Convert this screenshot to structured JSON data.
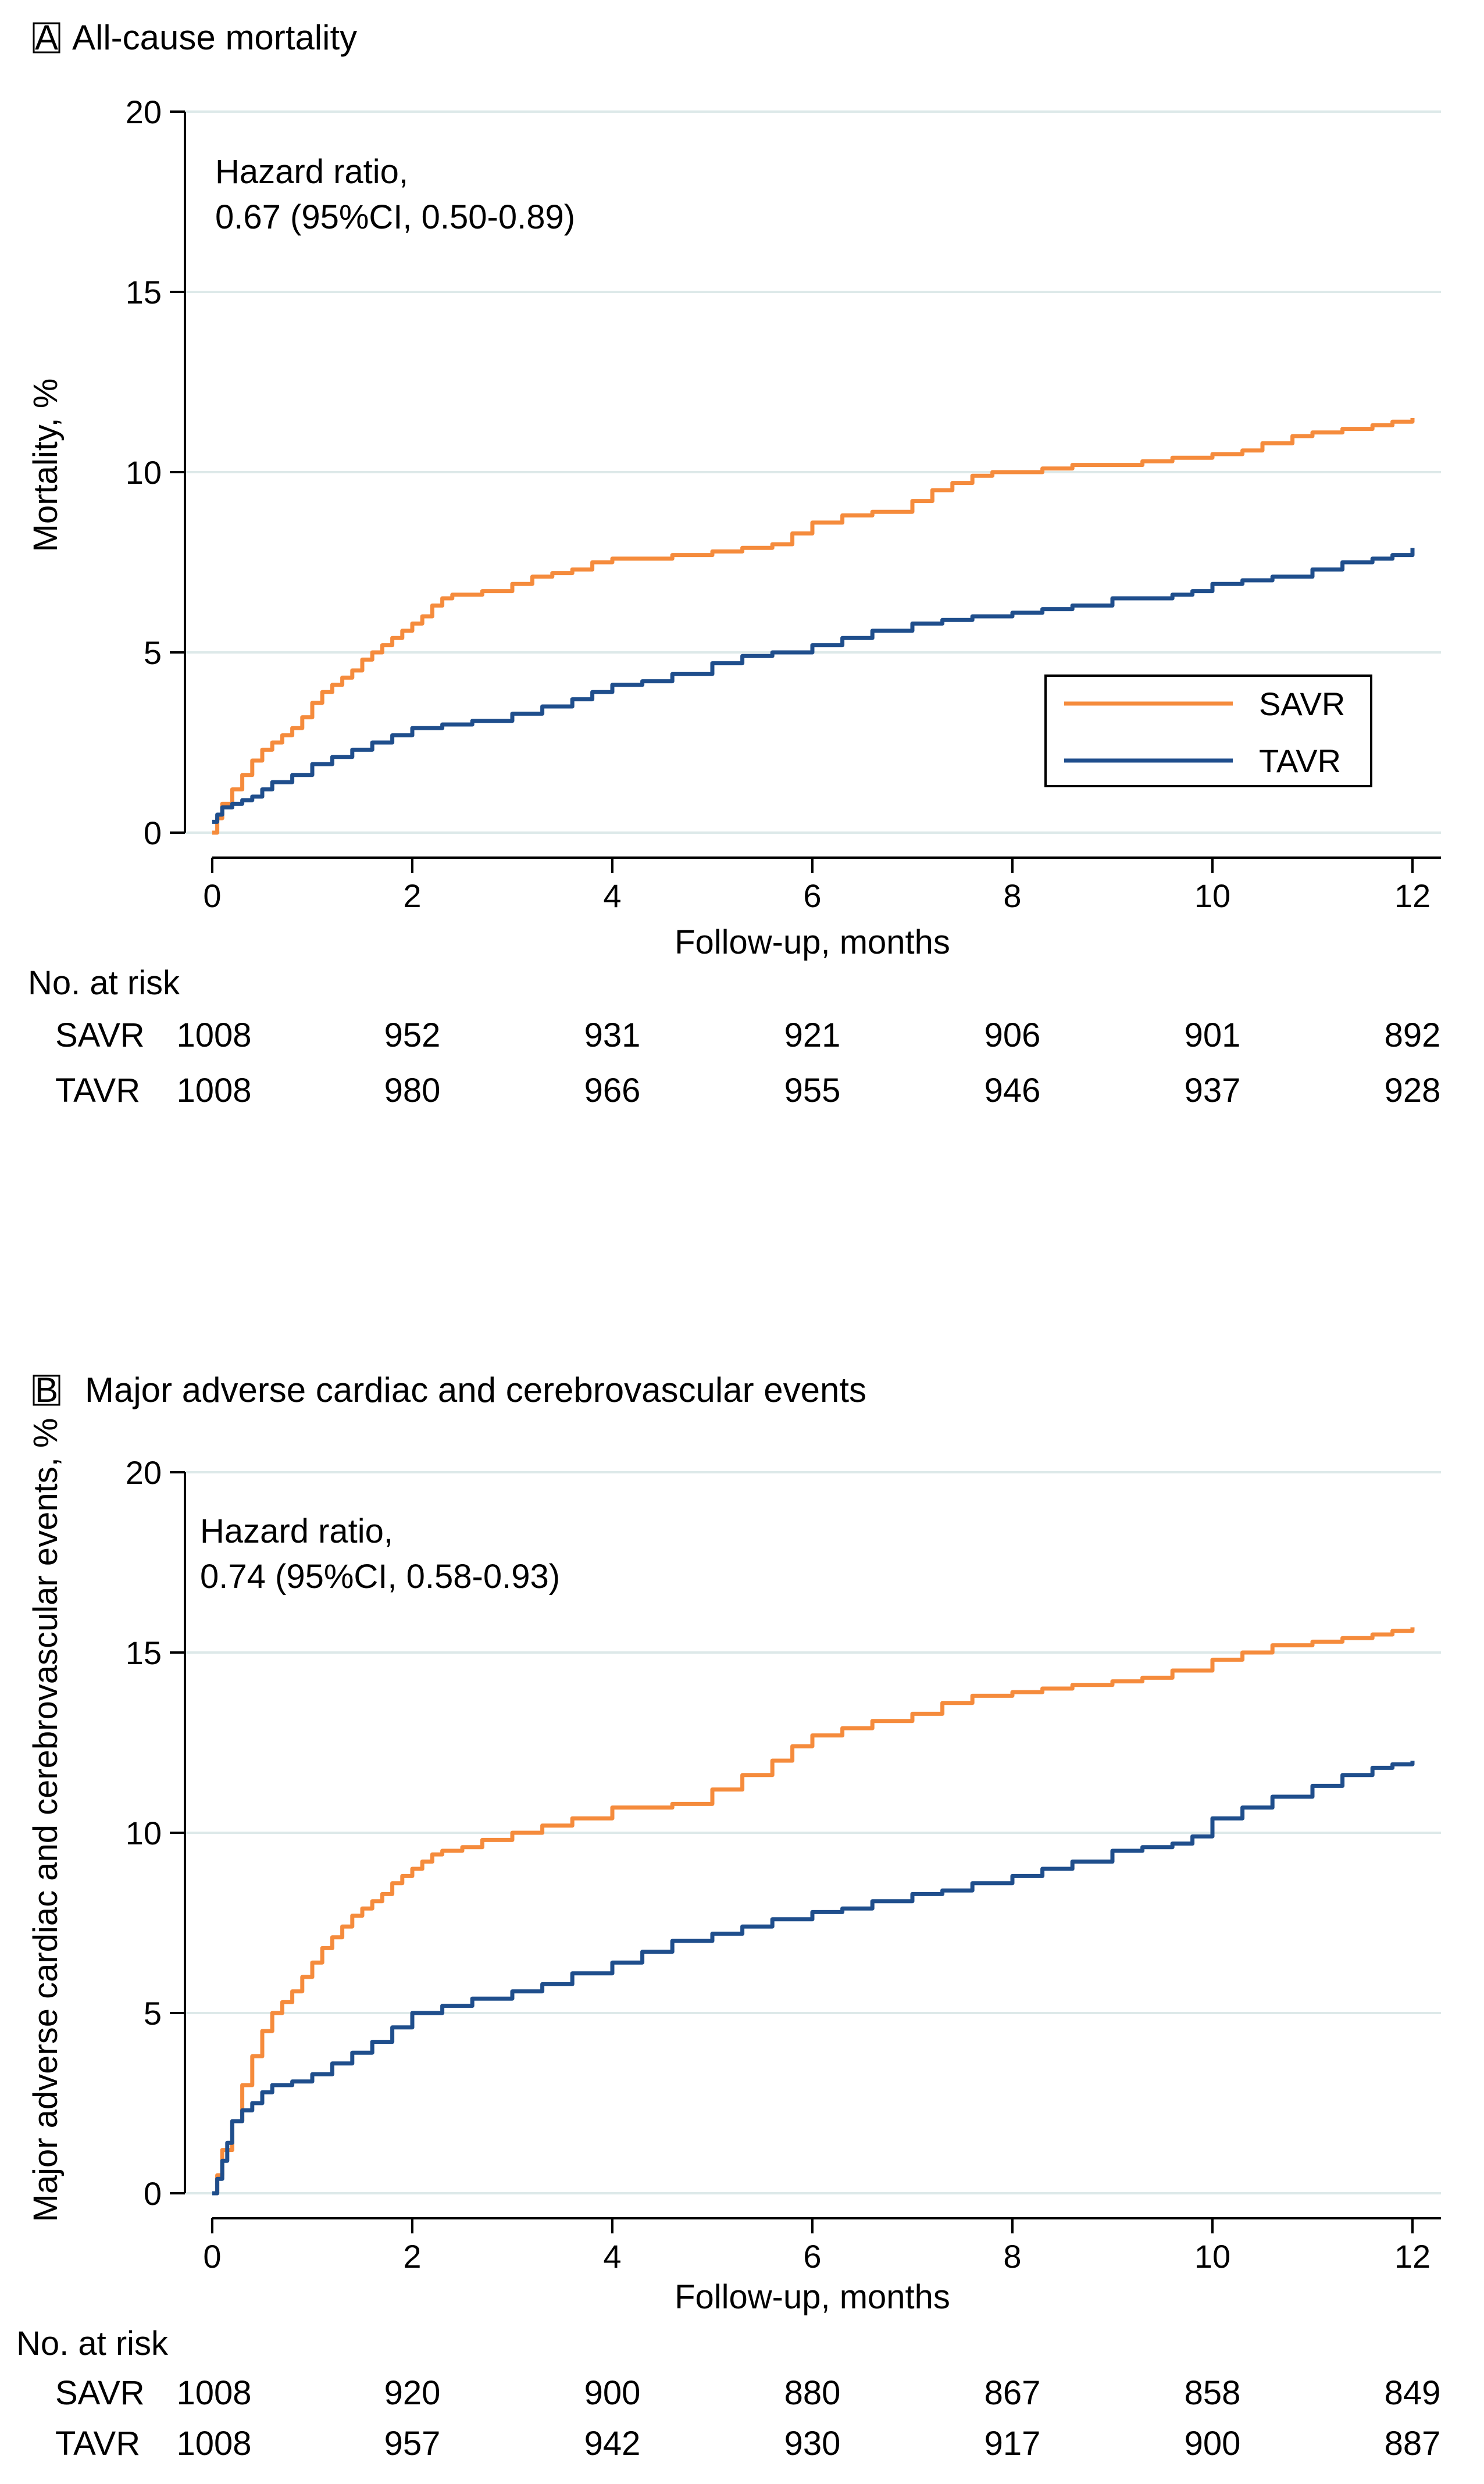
{
  "chart_data": [
    {
      "type": "line",
      "panel_letter": "A",
      "title": "All-cause mortality",
      "xlabel": "Follow-up, months",
      "ylabel": "Mortality, %",
      "xlim": [
        0,
        12
      ],
      "ylim": [
        0,
        20
      ],
      "x_ticks": [
        0,
        2,
        4,
        6,
        8,
        10,
        12
      ],
      "y_ticks": [
        0,
        5,
        10,
        15,
        20
      ],
      "grid": true,
      "legend_position": "bottom-right",
      "annotation": [
        "Hazard ratio,",
        "0.67 (95%CI, 0.50-0.89)"
      ],
      "series": [
        {
          "name": "SAVR",
          "color": "#f58b3c",
          "x": [
            0,
            0.05,
            0.1,
            0.2,
            0.3,
            0.4,
            0.5,
            0.6,
            0.7,
            0.8,
            0.9,
            1.0,
            1.1,
            1.2,
            1.3,
            1.4,
            1.5,
            1.6,
            1.7,
            1.8,
            1.9,
            2.0,
            2.1,
            2.2,
            2.3,
            2.4,
            2.5,
            2.7,
            3.0,
            3.2,
            3.4,
            3.6,
            3.8,
            4.0,
            4.3,
            4.6,
            5.0,
            5.3,
            5.6,
            5.8,
            6.0,
            6.3,
            6.6,
            7.0,
            7.2,
            7.4,
            7.6,
            7.8,
            8.0,
            8.3,
            8.6,
            9.0,
            9.3,
            9.6,
            9.8,
            10.0,
            10.3,
            10.5,
            10.8,
            11.0,
            11.3,
            11.6,
            11.8,
            12.0
          ],
          "y": [
            0,
            0.4,
            0.8,
            1.2,
            1.6,
            2.0,
            2.3,
            2.5,
            2.7,
            2.9,
            3.2,
            3.6,
            3.9,
            4.1,
            4.3,
            4.5,
            4.8,
            5.0,
            5.2,
            5.4,
            5.6,
            5.8,
            6.0,
            6.3,
            6.5,
            6.6,
            6.6,
            6.7,
            6.9,
            7.1,
            7.2,
            7.3,
            7.5,
            7.6,
            7.6,
            7.7,
            7.8,
            7.9,
            8.0,
            8.3,
            8.6,
            8.8,
            8.9,
            9.2,
            9.5,
            9.7,
            9.9,
            10.0,
            10.0,
            10.1,
            10.2,
            10.2,
            10.3,
            10.4,
            10.4,
            10.5,
            10.6,
            10.8,
            11.0,
            11.1,
            11.2,
            11.3,
            11.4,
            11.5
          ]
        },
        {
          "name": "TAVR",
          "color": "#1f4e8c",
          "x": [
            0,
            0.05,
            0.1,
            0.2,
            0.3,
            0.4,
            0.5,
            0.6,
            0.8,
            1.0,
            1.2,
            1.4,
            1.6,
            1.8,
            2.0,
            2.3,
            2.6,
            3.0,
            3.3,
            3.6,
            3.8,
            4.0,
            4.3,
            4.6,
            5.0,
            5.3,
            5.6,
            6.0,
            6.3,
            6.6,
            7.0,
            7.3,
            7.6,
            8.0,
            8.3,
            8.6,
            9.0,
            9.3,
            9.6,
            9.8,
            10.0,
            10.3,
            10.6,
            11.0,
            11.3,
            11.6,
            11.8,
            12.0
          ],
          "y": [
            0.3,
            0.5,
            0.7,
            0.8,
            0.9,
            1.0,
            1.2,
            1.4,
            1.6,
            1.9,
            2.1,
            2.3,
            2.5,
            2.7,
            2.9,
            3.0,
            3.1,
            3.3,
            3.5,
            3.7,
            3.9,
            4.1,
            4.2,
            4.4,
            4.7,
            4.9,
            5.0,
            5.2,
            5.4,
            5.6,
            5.8,
            5.9,
            6.0,
            6.1,
            6.2,
            6.3,
            6.5,
            6.5,
            6.6,
            6.7,
            6.9,
            7.0,
            7.1,
            7.3,
            7.5,
            7.6,
            7.7,
            7.9
          ]
        }
      ],
      "risk_table": {
        "header": "No. at risk",
        "rows": [
          {
            "label": "SAVR",
            "values": [
              1008,
              952,
              931,
              921,
              906,
              901,
              892
            ]
          },
          {
            "label": "TAVR",
            "values": [
              1008,
              980,
              966,
              955,
              946,
              937,
              928
            ]
          }
        ]
      }
    },
    {
      "type": "line",
      "panel_letter": "B",
      "title": "Major adverse cardiac and cerebrovascular events",
      "xlabel": "Follow-up, months",
      "ylabel": "Major adverse cardiac and cerebrovascular events, %",
      "xlim": [
        0,
        12
      ],
      "ylim": [
        0,
        20
      ],
      "x_ticks": [
        0,
        2,
        4,
        6,
        8,
        10,
        12
      ],
      "y_ticks": [
        0,
        5,
        10,
        15,
        20
      ],
      "grid": true,
      "annotation": [
        "Hazard ratio,",
        "0.74 (95%CI, 0.58-0.93)"
      ],
      "series": [
        {
          "name": "SAVR",
          "color": "#f58b3c",
          "x": [
            0,
            0.05,
            0.1,
            0.2,
            0.3,
            0.4,
            0.5,
            0.6,
            0.7,
            0.8,
            0.9,
            1.0,
            1.1,
            1.2,
            1.3,
            1.4,
            1.5,
            1.6,
            1.7,
            1.8,
            1.9,
            2.0,
            2.1,
            2.2,
            2.3,
            2.5,
            2.7,
            3.0,
            3.3,
            3.6,
            4.0,
            4.3,
            4.6,
            5.0,
            5.3,
            5.6,
            5.8,
            6.0,
            6.3,
            6.6,
            7.0,
            7.3,
            7.6,
            8.0,
            8.3,
            8.6,
            9.0,
            9.3,
            9.6,
            10.0,
            10.3,
            10.6,
            11.0,
            11.3,
            11.6,
            11.8,
            12.0
          ],
          "y": [
            0,
            0.5,
            1.2,
            2.0,
            3.0,
            3.8,
            4.5,
            5.0,
            5.3,
            5.6,
            6.0,
            6.4,
            6.8,
            7.1,
            7.4,
            7.7,
            7.9,
            8.1,
            8.3,
            8.6,
            8.8,
            9.0,
            9.2,
            9.4,
            9.5,
            9.6,
            9.8,
            10.0,
            10.2,
            10.4,
            10.7,
            10.7,
            10.8,
            11.2,
            11.6,
            12.0,
            12.4,
            12.7,
            12.9,
            13.1,
            13.3,
            13.6,
            13.8,
            13.9,
            14.0,
            14.1,
            14.2,
            14.3,
            14.5,
            14.8,
            15.0,
            15.2,
            15.3,
            15.4,
            15.5,
            15.6,
            15.7
          ]
        },
        {
          "name": "TAVR",
          "color": "#1f4e8c",
          "x": [
            0,
            0.05,
            0.1,
            0.15,
            0.2,
            0.3,
            0.4,
            0.5,
            0.6,
            0.8,
            1.0,
            1.2,
            1.4,
            1.6,
            1.8,
            2.0,
            2.3,
            2.6,
            3.0,
            3.3,
            3.6,
            4.0,
            4.3,
            4.6,
            5.0,
            5.3,
            5.6,
            6.0,
            6.3,
            6.6,
            7.0,
            7.3,
            7.6,
            8.0,
            8.3,
            8.6,
            9.0,
            9.3,
            9.6,
            9.8,
            10.0,
            10.3,
            10.6,
            11.0,
            11.3,
            11.6,
            11.8,
            12.0
          ],
          "y": [
            0,
            0.4,
            0.9,
            1.4,
            2.0,
            2.3,
            2.5,
            2.8,
            3.0,
            3.1,
            3.3,
            3.6,
            3.9,
            4.2,
            4.6,
            5.0,
            5.2,
            5.4,
            5.6,
            5.8,
            6.1,
            6.4,
            6.7,
            7.0,
            7.2,
            7.4,
            7.6,
            7.8,
            7.9,
            8.1,
            8.3,
            8.4,
            8.6,
            8.8,
            9.0,
            9.2,
            9.5,
            9.6,
            9.7,
            9.9,
            10.4,
            10.7,
            11.0,
            11.3,
            11.6,
            11.8,
            11.9,
            12.0
          ]
        }
      ],
      "risk_table": {
        "header": "No. at risk",
        "rows": [
          {
            "label": "SAVR",
            "values": [
              1008,
              920,
              900,
              880,
              867,
              858,
              849
            ]
          },
          {
            "label": "TAVR",
            "values": [
              1008,
              957,
              942,
              930,
              917,
              900,
              887
            ]
          }
        ]
      }
    }
  ]
}
